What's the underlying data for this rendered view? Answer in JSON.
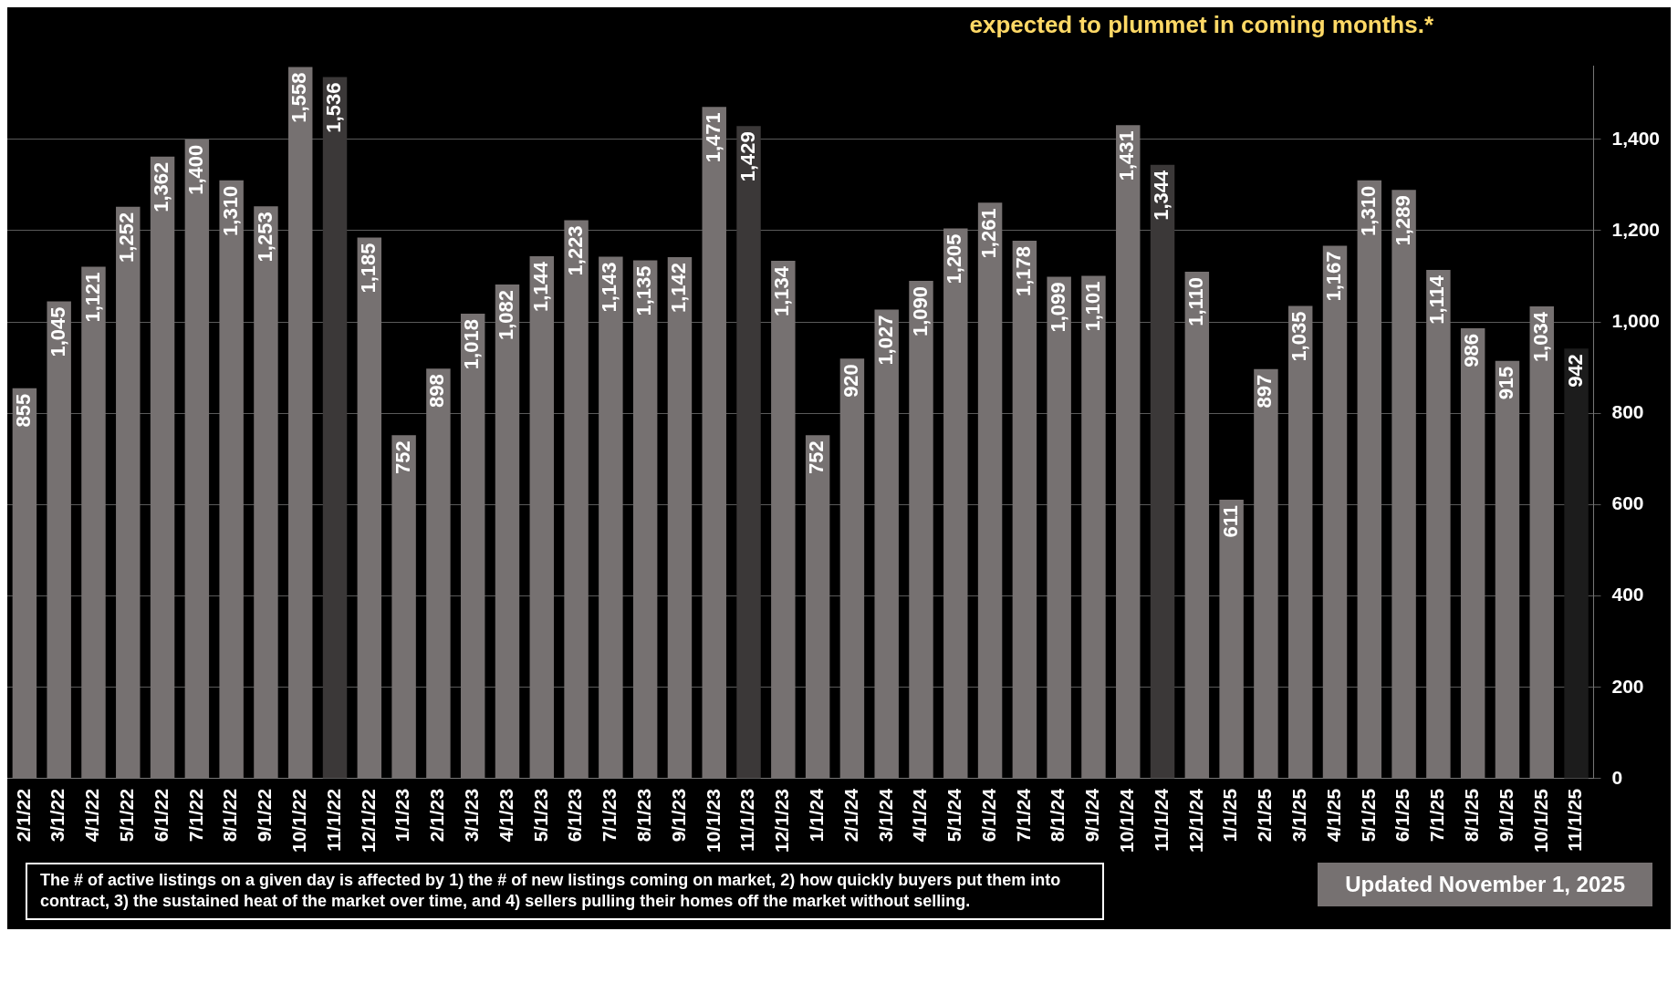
{
  "chart_data": {
    "type": "bar",
    "categories": [
      "2/1/22",
      "3/1/22",
      "4/1/22",
      "5/1/22",
      "6/1/22",
      "7/1/22",
      "8/1/22",
      "9/1/22",
      "10/1/22",
      "11/1/22",
      "12/1/22",
      "1/1/23",
      "2/1/23",
      "3/1/23",
      "4/1/23",
      "5/1/23",
      "6/1/23",
      "7/1/23",
      "8/1/23",
      "9/1/23",
      "10/1/23",
      "11/1/23",
      "12/1/23",
      "1/1/24",
      "2/1/24",
      "3/1/24",
      "4/1/24",
      "5/1/24",
      "6/1/24",
      "7/1/24",
      "8/1/24",
      "9/1/24",
      "10/1/24",
      "11/1/24",
      "12/1/24",
      "1/1/25",
      "2/1/25",
      "3/1/25",
      "4/1/25",
      "5/1/25",
      "6/1/25",
      "7/1/25",
      "8/1/25",
      "9/1/25",
      "10/1/25",
      "11/1/25"
    ],
    "values": [
      855,
      1045,
      1121,
      1252,
      1362,
      1400,
      1310,
      1253,
      1558,
      1536,
      1185,
      752,
      898,
      1018,
      1082,
      1144,
      1223,
      1143,
      1135,
      1142,
      1471,
      1429,
      1134,
      752,
      920,
      1027,
      1090,
      1205,
      1261,
      1178,
      1099,
      1101,
      1431,
      1344,
      1110,
      611,
      897,
      1035,
      1167,
      1310,
      1289,
      1114,
      986,
      915,
      1034,
      942
    ],
    "colors": [
      "#767171",
      "#767171",
      "#767171",
      "#767171",
      "#767171",
      "#767171",
      "#767171",
      "#767171",
      "#767171",
      "#3b3838",
      "#767171",
      "#767171",
      "#767171",
      "#767171",
      "#767171",
      "#767171",
      "#767171",
      "#767171",
      "#767171",
      "#767171",
      "#767171",
      "#3b3838",
      "#767171",
      "#767171",
      "#767171",
      "#767171",
      "#767171",
      "#767171",
      "#767171",
      "#767171",
      "#767171",
      "#767171",
      "#767171",
      "#3b3838",
      "#767171",
      "#767171",
      "#767171",
      "#767171",
      "#767171",
      "#767171",
      "#767171",
      "#767171",
      "#767171",
      "#767171",
      "#767171",
      "#1c1c1c"
    ],
    "value_labels": [
      "855",
      "1,045",
      "1,121",
      "1,252",
      "1,362",
      "1,400",
      "1,310",
      "1,253",
      "1,558",
      "1,536",
      "1,185",
      "752",
      "898",
      "1,018",
      "1,082",
      "1,144",
      "1,223",
      "1,143",
      "1,135",
      "1,142",
      "1,471",
      "1,429",
      "1,134",
      "752",
      "920",
      "1,027",
      "1,090",
      "1,205",
      "1,261",
      "1,178",
      "1,099",
      "1,101",
      "1,431",
      "1,344",
      "1,110",
      "611",
      "897",
      "1,035",
      "1,167",
      "1,310",
      "1,289",
      "1,114",
      "986",
      "915",
      "1,034",
      "942"
    ],
    "ylim": [
      0,
      1560
    ],
    "yticks": [
      0,
      200,
      400,
      600,
      800,
      {
        "value": 1000,
        "label": "1,000"
      },
      {
        "value": 1200,
        "label": "1,200"
      },
      {
        "value": 1400,
        "label": "1,400"
      }
    ],
    "grid": "y",
    "legend": false,
    "annotations": [
      "expected to plummet in coming months.*",
      "The # of active listings on a given day is affected by 1) the # of new listings coming on market, 2) how quickly buyers put them into contract, 3) the sustained heat of the market over time, and 4) sellers pulling their homes off the market without selling.",
      "Updated November 1, 2025"
    ]
  }
}
